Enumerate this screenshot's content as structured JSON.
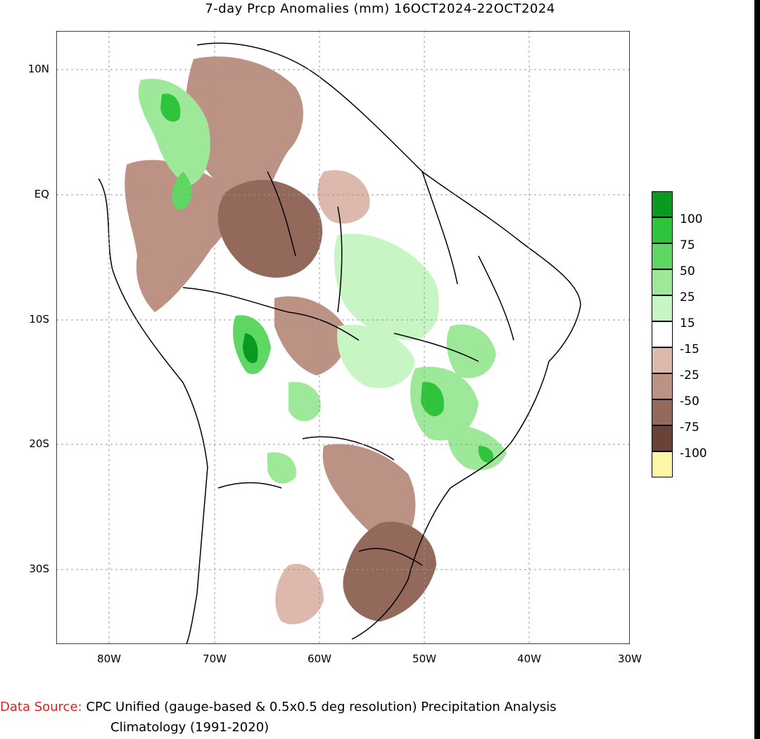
{
  "title": "7-day Prcp Anomalies (mm) 16OCT2024-22OCT2024",
  "axes": {
    "y_ticks": [
      "10N",
      "EQ",
      "10S",
      "20S",
      "30S"
    ],
    "x_ticks": [
      "80W",
      "70W",
      "60W",
      "50W",
      "40W",
      "30W"
    ]
  },
  "legend": {
    "labels": [
      "100",
      "75",
      "50",
      "25",
      "15",
      "-15",
      "-25",
      "-50",
      "-75",
      "-100"
    ],
    "colors": [
      "#0a9a22",
      "#2fc43b",
      "#5ed862",
      "#9ee89a",
      "#c8f5c4",
      "#ffffff",
      "#dcb8ad",
      "#bb9284",
      "#93695c",
      "#6b4237",
      "#fff7a8"
    ]
  },
  "footer": {
    "source_label": "Data Source:",
    "source_text": "CPC Unified (gauge-based & 0.5x0.5 deg resolution) Precipitation Analysis",
    "climatology": "Climatology (1991-2020)"
  }
}
